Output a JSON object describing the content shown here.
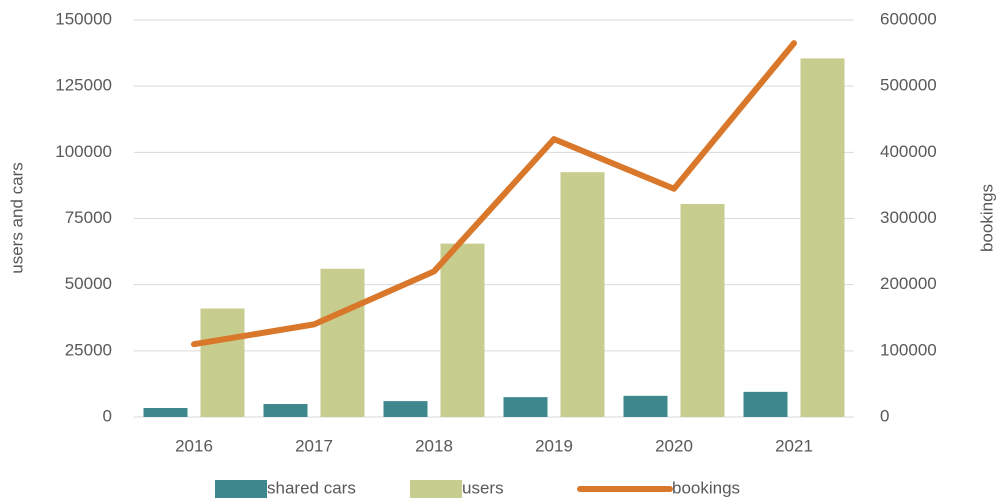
{
  "chart_data": {
    "type": "bar_line",
    "categories": [
      "2016",
      "2017",
      "2018",
      "2019",
      "2020",
      "2021"
    ],
    "series": [
      {
        "name": "shared cars",
        "color": "#3e878c",
        "type": "bar",
        "values": [
          3400,
          4900,
          6000,
          7500,
          8000,
          9500
        ]
      },
      {
        "name": "users",
        "color": "#c6cd8f",
        "type": "bar",
        "values": [
          41000,
          56000,
          65500,
          92500,
          80500,
          135500
        ]
      },
      {
        "name": "bookings",
        "color": "#d9782a",
        "type": "line",
        "axis": "y2",
        "values": [
          110000,
          140000,
          220000,
          420000,
          345000,
          565000
        ]
      }
    ],
    "y_label": "users and cars",
    "y2_label": "bookings",
    "ylim": [
      0,
      150000
    ],
    "yticks": [
      0,
      25000,
      50000,
      75000,
      100000,
      125000,
      150000
    ],
    "y2lim": [
      0,
      600000
    ],
    "y2ticks": [
      0,
      100000,
      200000,
      300000,
      400000,
      500000,
      600000
    ],
    "grid": true,
    "legend": "bottom"
  }
}
